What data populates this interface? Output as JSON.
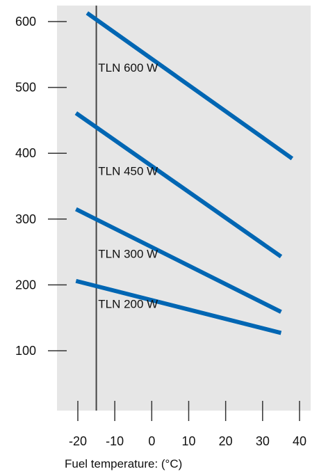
{
  "chart_data": {
    "type": "line",
    "title": "",
    "xlabel": "Fuel temperature: (°C)",
    "ylabel": "",
    "xlim": [
      -22,
      42
    ],
    "ylim": [
      20,
      620
    ],
    "x_ticks": [
      -20,
      -10,
      0,
      10,
      20,
      30,
      40
    ],
    "y_ticks": [
      100,
      200,
      300,
      400,
      500,
      600
    ],
    "x_tick_labels": [
      "-20",
      "-10",
      "0",
      "10",
      "20",
      "30",
      "40"
    ],
    "y_tick_labels": [
      "100",
      "200",
      "300",
      "400",
      "500",
      "600"
    ],
    "reference_line_x": -15,
    "series": [
      {
        "name": "TLN 600 W",
        "points": [
          [
            -17.5,
            613
          ],
          [
            38,
            392
          ]
        ],
        "label_at": [
          -14.5,
          524
        ]
      },
      {
        "name": "TLN 450 W",
        "points": [
          [
            -20.5,
            461
          ],
          [
            35,
            243
          ]
        ],
        "label_at": [
          -14.5,
          367
        ]
      },
      {
        "name": "TLN 300 W",
        "points": [
          [
            -20.5,
            315
          ],
          [
            35,
            159
          ]
        ],
        "label_at": [
          -14.5,
          241
        ]
      },
      {
        "name": "TLN 200 W",
        "points": [
          [
            -20.5,
            206
          ],
          [
            35,
            127
          ]
        ],
        "label_at": [
          -14.5,
          165
        ]
      }
    ],
    "grid": false,
    "legend": "inline",
    "colors": {
      "plot_background": "#e6e6e6",
      "series": "#0066b3",
      "reference_line": "#444444",
      "axis_ticks": "#333333",
      "text": "#111111"
    }
  }
}
